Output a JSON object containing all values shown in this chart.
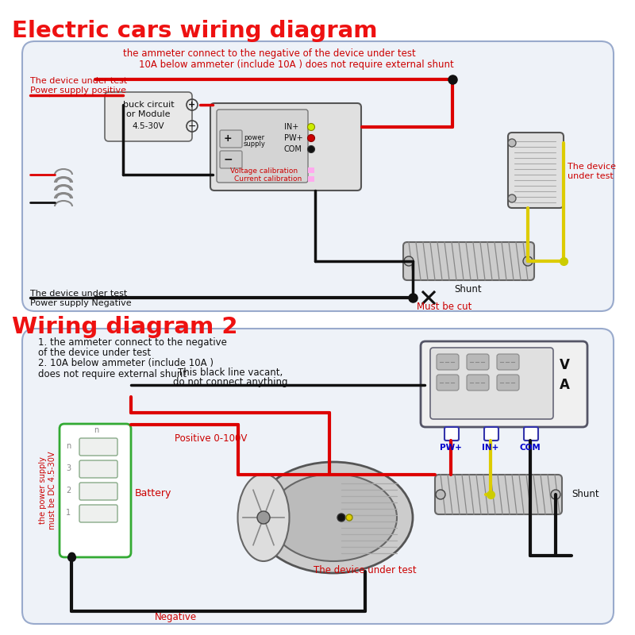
{
  "title1": "Electric cars wiring diagram",
  "title2": "Wiring diagram 2",
  "title_color": "#ee1111",
  "title_fontsize": 20,
  "bg_color": "#ffffff",
  "note1_line1": "the ammeter connect to the negative of the device under test",
  "note1_line2": "10A below ammeter (include 10A ) does not require external shunt",
  "note2_line1": "1. the ammeter connect to the negative",
  "note2_line2": "of the device under test",
  "note2_line3": "2. 10A below ammeter (include 10A )",
  "note2_line4": "does not require external shunt",
  "red": "#dd0000",
  "black": "#111111",
  "yellow": "#ddcc00",
  "text_red": "#cc0000",
  "text_black": "#111111",
  "text_blue": "#0000cc",
  "diag_fc": "#eef2f8",
  "diag_ec": "#99aacc"
}
